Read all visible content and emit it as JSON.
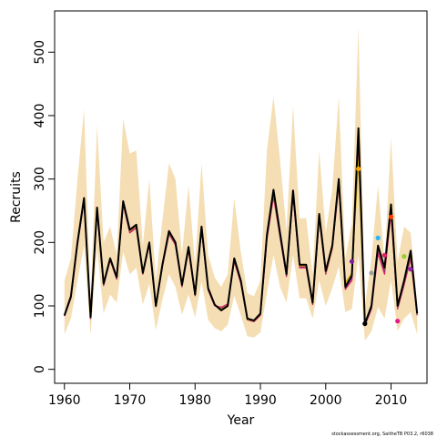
{
  "chart_data": {
    "type": "line",
    "title": "",
    "xlabel": "Year",
    "ylabel": "Recruits",
    "xlim": [
      1958.5,
      2015.5
    ],
    "ylim": [
      -22,
      565
    ],
    "x_ticks": [
      1960,
      1970,
      1980,
      1990,
      2000,
      2010
    ],
    "y_ticks": [
      0,
      100,
      200,
      300,
      400,
      500
    ],
    "grid": false,
    "legend": "none",
    "footnote": "stockassessment.org, SaitheTB P03.2, r6038",
    "years": [
      1960,
      1961,
      1962,
      1963,
      1964,
      1965,
      1966,
      1967,
      1968,
      1969,
      1970,
      1971,
      1972,
      1973,
      1974,
      1975,
      1976,
      1977,
      1978,
      1979,
      1980,
      1981,
      1982,
      1983,
      1984,
      1985,
      1986,
      1987,
      1988,
      1989,
      1990,
      1991,
      1992,
      1993,
      1994,
      1995,
      1996,
      1997,
      1998,
      1999,
      2000,
      2001,
      2002,
      2003,
      2004,
      2005,
      2006,
      2007,
      2008,
      2009,
      2010,
      2011,
      2012,
      2013,
      2014
    ],
    "ci_lower": [
      55,
      80,
      140,
      195,
      55,
      190,
      88,
      118,
      105,
      185,
      150,
      160,
      102,
      135,
      62,
      110,
      150,
      130,
      86,
      118,
      82,
      138,
      78,
      65,
      60,
      70,
      116,
      85,
      52,
      50,
      58,
      120,
      180,
      130,
      105,
      180,
      112,
      112,
      80,
      140,
      100,
      128,
      162,
      90,
      95,
      180,
      45,
      60,
      98,
      80,
      140,
      60,
      80,
      90,
      55
    ],
    "ci_upper": [
      140,
      175,
      300,
      410,
      110,
      385,
      200,
      225,
      180,
      395,
      340,
      345,
      195,
      300,
      140,
      235,
      325,
      300,
      182,
      290,
      165,
      325,
      180,
      145,
      130,
      150,
      270,
      185,
      120,
      115,
      140,
      345,
      430,
      330,
      220,
      415,
      238,
      238,
      150,
      345,
      215,
      285,
      430,
      175,
      230,
      540,
      100,
      175,
      290,
      170,
      365,
      170,
      225,
      215,
      105
    ],
    "series": [
      {
        "color": "#000000",
        "values": [
          85,
          115,
          200,
          270,
          82,
          255,
          135,
          175,
          145,
          265,
          220,
          228,
          152,
          200,
          100,
          165,
          218,
          200,
          133,
          193,
          118,
          225,
          128,
          102,
          93,
          100,
          175,
          140,
          80,
          77,
          88,
          212,
          283,
          215,
          150,
          282,
          165,
          165,
          105,
          245,
          155,
          195,
          300,
          130,
          148,
          380,
          72,
          100,
          195,
          160,
          260,
          100,
          140,
          187,
          88
        ]
      },
      {
        "color": "#dd2266",
        "values": [
          84,
          112,
          196,
          265,
          80,
          250,
          132,
          172,
          142,
          260,
          215,
          223,
          150,
          197,
          99,
          162,
          213,
          196,
          130,
          188,
          116,
          220,
          125,
          100,
          98,
          103,
          170,
          136,
          78,
          75,
          85,
          205,
          272,
          208,
          146,
          274,
          160,
          160,
          102,
          238,
          150,
          190,
          290,
          126,
          140,
          360,
          69,
          95,
          183,
          150,
          246,
          95,
          133,
          175,
          85
        ]
      },
      {
        "color": "#7c2d9c",
        "values": [
          84,
          113,
          198,
          267,
          81,
          252,
          133,
          173,
          143,
          262,
          217,
          225,
          151,
          198,
          99,
          163,
          215,
          198,
          131,
          190,
          117,
          222,
          126,
          101,
          96,
          101,
          172,
          138,
          79,
          76,
          86,
          208,
          276,
          210,
          148,
          278,
          162,
          162,
          103,
          240,
          152,
          193,
          295,
          128,
          144,
          370,
          70,
          97,
          190,
          155,
          252,
          97,
          136,
          180,
          86
        ]
      },
      {
        "color": "#c8a000",
        "values": [
          85,
          114,
          199,
          268,
          81,
          253,
          134,
          174,
          144,
          263,
          218,
          226,
          151,
          199,
          100,
          164,
          216,
          199,
          132,
          191,
          117,
          223,
          127,
          101,
          95,
          101,
          173,
          139,
          79,
          76,
          87,
          210,
          278,
          212,
          149,
          280,
          163,
          163,
          104,
          243,
          153,
          192,
          296,
          136,
          152,
          330,
          73,
          100,
          192,
          158,
          255,
          98,
          138,
          183,
          87
        ]
      }
    ],
    "markers": [
      {
        "x": 2004,
        "y": 170,
        "color": "#7b1fa2"
      },
      {
        "x": 2005,
        "y": 316,
        "color": "#ffa500"
      },
      {
        "x": 2006,
        "y": 72,
        "color": "#000000"
      },
      {
        "x": 2007,
        "y": 152,
        "color": "#9e9e9e"
      },
      {
        "x": 2008,
        "y": 207,
        "color": "#29b6f6"
      },
      {
        "x": 2009,
        "y": 180,
        "color": "#e91e63"
      },
      {
        "x": 2010,
        "y": 240,
        "color": "#ff3b00"
      },
      {
        "x": 2011,
        "y": 76,
        "color": "#e0198c"
      },
      {
        "x": 2012,
        "y": 178,
        "color": "#9acd32"
      },
      {
        "x": 2013,
        "y": 158,
        "color": "#8e24aa"
      }
    ],
    "band_color": "#f5deb3"
  }
}
